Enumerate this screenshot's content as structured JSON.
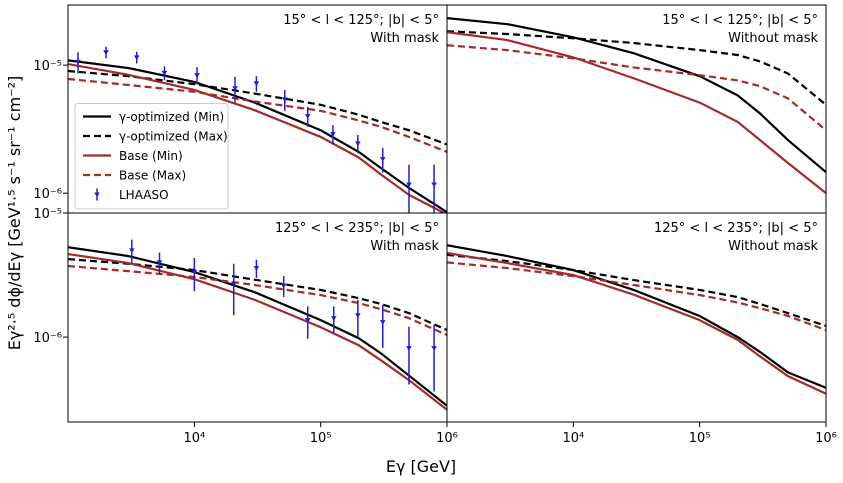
{
  "axis_labels": {
    "x": "Eγ  [GeV]",
    "y": "Eγ²·⁵ dϕ/dEγ  [GeV¹·⁵ s⁻¹ sr⁻¹ cm⁻²]"
  },
  "chart_data": [
    {
      "type": "line",
      "annotation": "15° < l < 125°; |b| < 5°",
      "subtitle": "With mask",
      "log_x": true,
      "log_y": true,
      "legend": "lower left",
      "xlim": [
        1000,
        1000000
      ],
      "ylim": [
        7e-07,
        2.95e-05
      ],
      "yticks": [
        {
          "value": 1e-06,
          "label": "10⁻⁶"
        },
        {
          "value": 1e-05,
          "label": "10⁻⁵"
        }
      ],
      "x": [
        1000,
        3000,
        10000,
        30000,
        100000,
        200000,
        300000,
        500000,
        1000000
      ],
      "series": [
        {
          "name": "γ-optimized (Min)",
          "kind": "line",
          "style": "solid",
          "color": "#000000",
          "values": [
            1.09e-05,
            9.5e-06,
            7.4e-06,
            5.1e-06,
            3.1e-06,
            2.1e-06,
            1.57e-06,
            1.1e-06,
            7.1e-07
          ]
        },
        {
          "name": "γ-optimized (Max)",
          "kind": "line",
          "style": "dashed",
          "color": "#000000",
          "values": [
            9e-06,
            8.2e-06,
            7.1e-06,
            6e-06,
            4.9e-06,
            4.1e-06,
            3.6e-06,
            3.1e-06,
            2.4e-06
          ]
        },
        {
          "name": "Base (Min)",
          "kind": "line",
          "style": "solid",
          "color": "#a52a2a",
          "values": [
            1.02e-05,
            8.4e-06,
            6.4e-06,
            4.45e-06,
            2.75e-06,
            1.9e-06,
            1.4e-06,
            9.7e-07,
            6.8e-07
          ]
        },
        {
          "name": "Base (Max)",
          "kind": "line",
          "style": "dashed",
          "color": "#a52a2a",
          "values": [
            7.8e-06,
            7e-06,
            6.2e-06,
            5.2e-06,
            4.4e-06,
            3.7e-06,
            3.3e-06,
            2.75e-06,
            2.1e-06
          ]
        },
        {
          "name": "LHAASO",
          "kind": "errorbar",
          "color": "#1f1fd6",
          "x": [
            1200,
            2000,
            3500,
            5800,
            10500,
            21000,
            31000,
            52000,
            79000,
            125000,
            197000,
            310000,
            500000,
            790000
          ],
          "values": [
            1.06e-05,
            1.26e-05,
            1.15e-05,
            8.7e-06,
            8.35e-06,
            6.6e-06,
            7.2e-06,
            5.4e-06,
            4e-06,
            2.9e-06,
            2.45e-06,
            1.85e-06,
            1.17e-06,
            1.17e-06
          ],
          "yerr": [
            2e-06,
            1.3e-06,
            1.2e-06,
            1.1e-06,
            1.3e-06,
            1.5e-06,
            1e-06,
            1e-06,
            7e-07,
            5e-07,
            4e-07,
            4e-07,
            5e-07,
            5e-07
          ]
        }
      ]
    },
    {
      "type": "line",
      "annotation": "15° < l < 125°; |b| < 5°",
      "subtitle": "Without mask",
      "log_x": true,
      "log_y": true,
      "xlim": [
        1000,
        1000000
      ],
      "ylim": [
        7e-07,
        2.95e-05
      ],
      "x": [
        1000,
        3000,
        10000,
        30000,
        100000,
        200000,
        300000,
        500000,
        1000000
      ],
      "series": [
        {
          "kind": "line",
          "style": "solid",
          "color": "#000000",
          "values": [
            2.33e-05,
            2.09e-05,
            1.65e-05,
            1.24e-05,
            8.2e-06,
            5.8e-06,
            4.2e-06,
            2.6e-06,
            1.46e-06
          ]
        },
        {
          "kind": "line",
          "style": "dashed",
          "color": "#000000",
          "values": [
            1.84e-05,
            1.75e-05,
            1.62e-05,
            1.49e-05,
            1.31e-05,
            1.2e-05,
            1.07e-05,
            8.6e-06,
            4.9e-06
          ]
        },
        {
          "kind": "line",
          "style": "solid",
          "color": "#a52a2a",
          "values": [
            1.81e-05,
            1.57e-05,
            1.15e-05,
            7.9e-06,
            5.1e-06,
            3.6e-06,
            2.6e-06,
            1.72e-06,
            1e-06
          ]
        },
        {
          "kind": "line",
          "style": "dashed",
          "color": "#a52a2a",
          "values": [
            1.43e-05,
            1.31e-05,
            1.13e-05,
            9.6e-06,
            8.35e-06,
            7.6e-06,
            6.85e-06,
            5.5e-06,
            3.1e-06
          ]
        }
      ]
    },
    {
      "type": "line",
      "annotation": "125° < l < 235°; |b| < 5°",
      "subtitle": "With mask",
      "log_x": true,
      "log_y": true,
      "xlim": [
        1000,
        1000000
      ],
      "ylim": [
        2.07e-07,
        1e-05
      ],
      "xticks": [
        {
          "value": 10000,
          "label": "10⁴"
        },
        {
          "value": 100000,
          "label": "10⁵"
        },
        {
          "value": 1000000,
          "label": "10⁶"
        }
      ],
      "yticks": [
        {
          "value": 1e-06,
          "label": "10⁻⁶"
        },
        {
          "value": 1e-05,
          "label": "10⁻⁵"
        }
      ],
      "x": [
        1000,
        3000,
        10000,
        30000,
        100000,
        200000,
        300000,
        500000,
        1000000
      ],
      "series": [
        {
          "kind": "line",
          "style": "solid",
          "color": "#000000",
          "values": [
            5.3e-06,
            4.5e-06,
            3.34e-06,
            2.3e-06,
            1.37e-06,
            9.8e-07,
            7.4e-07,
            4.9e-07,
            2.8e-07
          ]
        },
        {
          "kind": "line",
          "style": "dashed",
          "color": "#000000",
          "values": [
            4.25e-06,
            3.9e-06,
            3.47e-06,
            2.9e-06,
            2.4e-06,
            2.06e-06,
            1.85e-06,
            1.56e-06,
            1.14e-06
          ]
        },
        {
          "kind": "line",
          "style": "solid",
          "color": "#a52a2a",
          "values": [
            4.67e-06,
            3.95e-06,
            2.93e-06,
            2e-06,
            1.2e-06,
            8.6e-07,
            6.5e-07,
            4.5e-07,
            2.6e-07
          ]
        },
        {
          "kind": "line",
          "style": "dashed",
          "color": "#a52a2a",
          "values": [
            3.74e-06,
            3.4e-06,
            3.05e-06,
            2.63e-06,
            2.18e-06,
            1.88e-06,
            1.68e-06,
            1.42e-06,
            1.04e-06
          ]
        },
        {
          "kind": "errorbar",
          "color": "#1f1fd6",
          "x": [
            3200,
            5300,
            10000,
            20500,
            31000,
            51000,
            79000,
            127000,
            197000,
            310000,
            500000,
            790000
          ],
          "values": [
            5e-06,
            4e-06,
            3.34e-06,
            2.7e-06,
            3.6e-06,
            2.6e-06,
            1.37e-06,
            1.42e-06,
            1.5e-06,
            1.32e-06,
            8.15e-07,
            8.15e-07
          ],
          "yerr": [
            1.1e-06,
            8e-07,
            1e-06,
            1.2e-06,
            6e-07,
            5e-07,
            4e-07,
            3.5e-07,
            5e-07,
            5e-07,
            4e-07,
            4.5e-07
          ]
        }
      ]
    },
    {
      "type": "line",
      "annotation": "125° < l < 235°; |b| < 5°",
      "subtitle": "Without mask",
      "log_x": true,
      "log_y": true,
      "xlim": [
        1000,
        1000000
      ],
      "ylim": [
        2.07e-07,
        1e-05
      ],
      "xticks": [
        {
          "value": 10000,
          "label": "10⁴"
        },
        {
          "value": 100000,
          "label": "10⁵"
        },
        {
          "value": 1000000,
          "label": "10⁶"
        }
      ],
      "x": [
        1000,
        3000,
        10000,
        30000,
        100000,
        200000,
        300000,
        500000,
        1000000
      ],
      "series": [
        {
          "kind": "line",
          "style": "solid",
          "color": "#000000",
          "values": [
            5.5e-06,
            4.5e-06,
            3.47e-06,
            2.4e-06,
            1.48e-06,
            1e-06,
            7.6e-07,
            5.2e-07,
            3.9e-07
          ]
        },
        {
          "kind": "line",
          "style": "dashed",
          "color": "#000000",
          "values": [
            4.6e-06,
            4.1e-06,
            3.47e-06,
            2.88e-06,
            2.4e-06,
            2.1e-06,
            1.85e-06,
            1.56e-06,
            1.23e-06
          ]
        },
        {
          "kind": "line",
          "style": "solid",
          "color": "#a52a2a",
          "values": [
            4.76e-06,
            3.95e-06,
            3.16e-06,
            2.2e-06,
            1.37e-06,
            9.5e-07,
            7e-07,
            4.85e-07,
            3.5e-07
          ]
        },
        {
          "kind": "line",
          "style": "dashed",
          "color": "#a52a2a",
          "values": [
            4e-06,
            3.6e-06,
            3.1e-06,
            2.63e-06,
            2.18e-06,
            1.9e-06,
            1.71e-06,
            1.48e-06,
            1.14e-06
          ]
        }
      ]
    }
  ]
}
